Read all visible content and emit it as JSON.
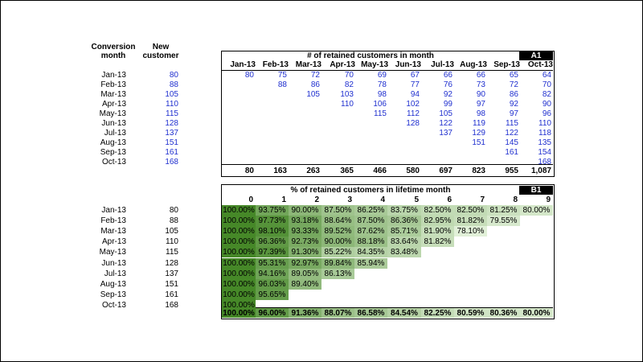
{
  "left_table": {
    "header_month": [
      "Conversion",
      "month"
    ],
    "header_new": [
      "New",
      "customer"
    ],
    "months": [
      "Jan-13",
      "Feb-13",
      "Mar-13",
      "Apr-13",
      "May-13",
      "Jun-13",
      "Jul-13",
      "Aug-13",
      "Sep-13",
      "Oct-13"
    ],
    "new_customers": [
      "80",
      "88",
      "105",
      "110",
      "115",
      "128",
      "137",
      "151",
      "161",
      "168"
    ]
  },
  "retained_table": {
    "title": "# of retained customers in month",
    "tag": "A1",
    "columns": [
      "Jan-13",
      "Feb-13",
      "Mar-13",
      "Apr-13",
      "May-13",
      "Jun-13",
      "Jul-13",
      "Aug-13",
      "Sep-13",
      "Oct-13"
    ],
    "rows": [
      [
        "80",
        "75",
        "72",
        "70",
        "69",
        "67",
        "66",
        "66",
        "65",
        "64"
      ],
      [
        "",
        "88",
        "86",
        "82",
        "78",
        "77",
        "76",
        "73",
        "72",
        "70"
      ],
      [
        "",
        "",
        "105",
        "103",
        "98",
        "94",
        "92",
        "90",
        "86",
        "82"
      ],
      [
        "",
        "",
        "",
        "110",
        "106",
        "102",
        "99",
        "97",
        "92",
        "90"
      ],
      [
        "",
        "",
        "",
        "",
        "115",
        "112",
        "105",
        "98",
        "97",
        "96"
      ],
      [
        "",
        "",
        "",
        "",
        "",
        "128",
        "122",
        "119",
        "115",
        "110"
      ],
      [
        "",
        "",
        "",
        "",
        "",
        "",
        "137",
        "129",
        "122",
        "118"
      ],
      [
        "",
        "",
        "",
        "",
        "",
        "",
        "",
        "151",
        "145",
        "135"
      ],
      [
        "",
        "",
        "",
        "",
        "",
        "",
        "",
        "",
        "161",
        "154"
      ],
      [
        "",
        "",
        "",
        "",
        "",
        "",
        "",
        "",
        "",
        "168"
      ]
    ],
    "totals": [
      "80",
      "163",
      "263",
      "365",
      "466",
      "580",
      "697",
      "823",
      "955",
      "1,087"
    ]
  },
  "percent_table": {
    "title": "% of retained customers in lifetime month",
    "tag": "B1",
    "columns": [
      "0",
      "1",
      "2",
      "3",
      "4",
      "5",
      "6",
      "7",
      "8",
      "9"
    ],
    "months": [
      "Jan-13",
      "Feb-13",
      "Mar-13",
      "Apr-13",
      "May-13",
      "Jun-13",
      "Jul-13",
      "Aug-13",
      "Sep-13",
      "Oct-13"
    ],
    "new_customers": [
      "80",
      "88",
      "105",
      "110",
      "115",
      "128",
      "137",
      "151",
      "161",
      "168"
    ],
    "rows": [
      [
        "100.00%",
        "93.75%",
        "90.00%",
        "87.50%",
        "86.25%",
        "83.75%",
        "82.50%",
        "82.50%",
        "81.25%",
        "80.00%"
      ],
      [
        "100.00%",
        "97.73%",
        "93.18%",
        "88.64%",
        "87.50%",
        "86.36%",
        "82.95%",
        "81.82%",
        "79.55%"
      ],
      [
        "100.00%",
        "98.10%",
        "93.33%",
        "89.52%",
        "87.62%",
        "85.71%",
        "81.90%",
        "78.10%"
      ],
      [
        "100.00%",
        "96.36%",
        "92.73%",
        "90.00%",
        "88.18%",
        "83.64%",
        "81.82%"
      ],
      [
        "100.00%",
        "97.39%",
        "91.30%",
        "85.22%",
        "84.35%",
        "83.48%"
      ],
      [
        "100.00%",
        "95.31%",
        "92.97%",
        "89.84%",
        "85.94%"
      ],
      [
        "100.00%",
        "94.16%",
        "89.05%",
        "86.13%"
      ],
      [
        "100.00%",
        "96.03%",
        "89.40%"
      ],
      [
        "100.00%",
        "95.65%"
      ],
      [
        "100.00%"
      ]
    ],
    "totals": [
      "100.00%",
      "96.00%",
      "91.36%",
      "88.07%",
      "86.58%",
      "84.54%",
      "82.25%",
      "80.59%",
      "80.36%",
      "80.00%"
    ]
  }
}
